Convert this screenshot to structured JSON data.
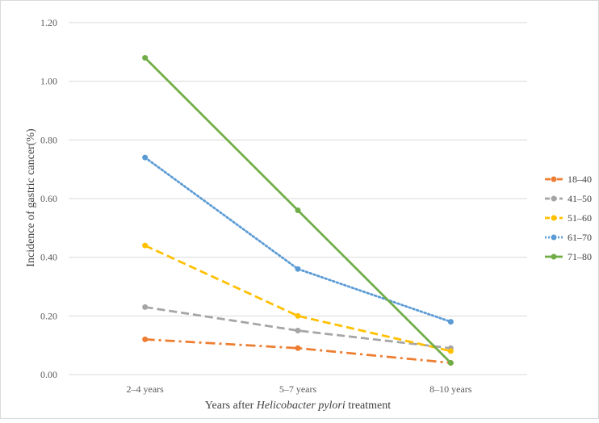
{
  "chart_data": {
    "type": "line",
    "title": "",
    "xlabel_prefix": "Years after ",
    "xlabel_italic": "Helicobacter pylori",
    "xlabel_suffix": " treatment",
    "ylabel": "Incidence of gastric cancer(%)",
    "categories": [
      "2–4 years",
      "5–7 years",
      "8–10 years"
    ],
    "ylim": [
      0,
      1.2
    ],
    "yticks": [
      "0.00",
      "0.20",
      "0.40",
      "0.60",
      "0.80",
      "1.00",
      "1.20"
    ],
    "ytick_values": [
      0,
      0.2,
      0.4,
      0.6,
      0.8,
      1.0,
      1.2
    ],
    "grid": "horizontal",
    "legend_position": "right",
    "series": [
      {
        "name": "18–40",
        "values": [
          0.12,
          0.09,
          0.04
        ],
        "color": "#ED7D31",
        "style": "dash-dot"
      },
      {
        "name": "41–50",
        "values": [
          0.23,
          0.15,
          0.09
        ],
        "color": "#A5A5A5",
        "style": "dashed"
      },
      {
        "name": "51–60",
        "values": [
          0.44,
          0.2,
          0.08
        ],
        "color": "#FFC000",
        "style": "dashed"
      },
      {
        "name": "61–70",
        "values": [
          0.74,
          0.36,
          0.18
        ],
        "color": "#5B9BD5",
        "style": "dotted"
      },
      {
        "name": "71–80",
        "values": [
          1.08,
          0.56,
          0.04
        ],
        "color": "#70AD47",
        "style": "solid"
      }
    ]
  }
}
